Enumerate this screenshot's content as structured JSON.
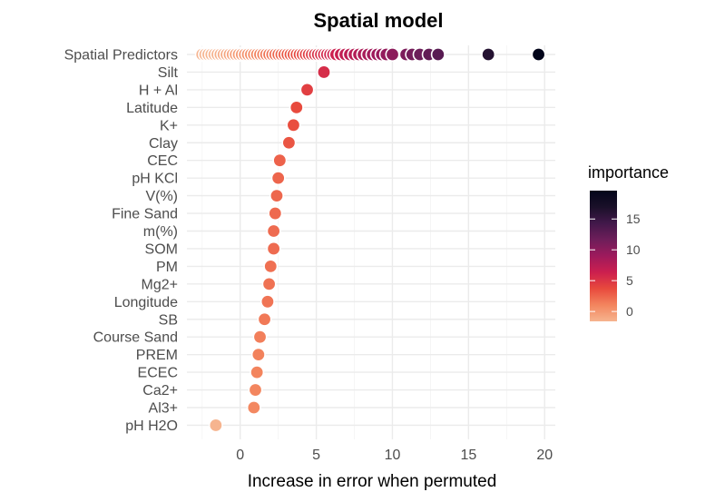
{
  "chart_data": {
    "type": "scatter",
    "title": "Spatial model",
    "xlabel": "Increase in error when permuted",
    "ylabel": "",
    "xlim": [
      -3.5,
      20.7
    ],
    "x_ticks": [
      0,
      5,
      10,
      15,
      20
    ],
    "grid": true,
    "categories": [
      "Spatial Predictors",
      "Silt",
      "H + Al",
      "Latitude",
      "K+",
      "Clay",
      "CEC",
      "pH KCl",
      "V(%)",
      "Fine Sand",
      "m(%)",
      "SOM",
      "PM",
      "Mg2+",
      "Longitude",
      "SB",
      "Course Sand",
      "PREM",
      "ECEC",
      "Ca2+",
      "Al3+",
      "pH H2O"
    ],
    "series": [
      {
        "values": [
          {
            "category": "Silt",
            "x": 5.5
          },
          {
            "category": "H + Al",
            "x": 4.4
          },
          {
            "category": "Latitude",
            "x": 3.7
          },
          {
            "category": "K+",
            "x": 3.5
          },
          {
            "category": "Clay",
            "x": 3.2
          },
          {
            "category": "CEC",
            "x": 2.6
          },
          {
            "category": "pH KCl",
            "x": 2.5
          },
          {
            "category": "V(%)",
            "x": 2.4
          },
          {
            "category": "Fine Sand",
            "x": 2.3
          },
          {
            "category": "m(%)",
            "x": 2.2
          },
          {
            "category": "SOM",
            "x": 2.2
          },
          {
            "category": "PM",
            "x": 2.0
          },
          {
            "category": "Mg2+",
            "x": 1.9
          },
          {
            "category": "Longitude",
            "x": 1.8
          },
          {
            "category": "SB",
            "x": 1.6
          },
          {
            "category": "Course Sand",
            "x": 1.3
          },
          {
            "category": "PREM",
            "x": 1.2
          },
          {
            "category": "ECEC",
            "x": 1.1
          },
          {
            "category": "Ca2+",
            "x": 1.0
          },
          {
            "category": "Al3+",
            "x": 0.9
          },
          {
            "category": "pH H2O",
            "x": -1.6
          }
        ]
      }
    ],
    "spatial_predictors_x": [
      -2.5,
      -2.3,
      -2.1,
      -1.9,
      -1.7,
      -1.5,
      -1.3,
      -1.1,
      -0.9,
      -0.7,
      -0.5,
      -0.3,
      -0.1,
      0.1,
      0.3,
      0.5,
      0.7,
      0.9,
      1.1,
      1.3,
      1.5,
      1.7,
      1.9,
      2.1,
      2.3,
      2.5,
      2.7,
      2.9,
      3.1,
      3.3,
      3.5,
      3.7,
      3.9,
      4.1,
      4.3,
      4.5,
      4.7,
      4.9,
      5.1,
      5.3,
      5.5,
      5.7,
      5.9,
      6.1,
      6.3,
      6.6,
      6.9,
      7.2,
      7.5,
      7.8,
      8.1,
      8.4,
      8.7,
      9.0,
      9.3,
      9.6,
      10.0,
      10.9,
      11.3,
      11.8,
      12.4,
      13.0,
      16.3,
      19.6
    ],
    "legend": {
      "title": "importance",
      "position": "right",
      "min": -1.6,
      "max": 19.6,
      "ticks": [
        0,
        5,
        10,
        15
      ],
      "colors": [
        "#f6b48f",
        "#f3855e",
        "#e84a3d",
        "#cc1f4f",
        "#9e1a5c",
        "#6e1e5a",
        "#42184a",
        "#1a1029",
        "#03051a"
      ]
    }
  }
}
